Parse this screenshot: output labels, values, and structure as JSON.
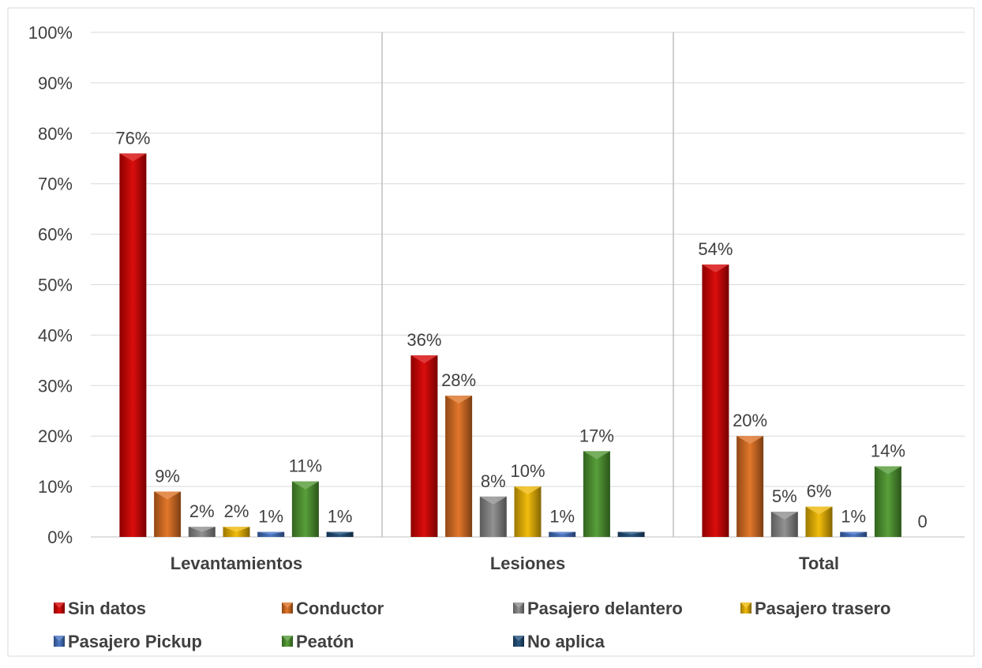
{
  "chart_data": {
    "type": "bar",
    "categories": [
      "Levantamientos",
      "Lesiones",
      "Total"
    ],
    "ylim": [
      0,
      100
    ],
    "yticks": [
      "0%",
      "10%",
      "20%",
      "30%",
      "40%",
      "50%",
      "60%",
      "70%",
      "80%",
      "90%",
      "100%"
    ],
    "grid": true,
    "legend_position": "bottom",
    "series": [
      {
        "name": "Sin datos",
        "color": "#d90000",
        "values": [
          76,
          36,
          54
        ],
        "labels": [
          "76%",
          "36%",
          "54%"
        ]
      },
      {
        "name": "Conductor",
        "color": "#e07020",
        "values": [
          9,
          28,
          20
        ],
        "labels": [
          "9%",
          "28%",
          "20%"
        ]
      },
      {
        "name": "Pasajero delantero",
        "color": "#8c8c8c",
        "values": [
          2,
          8,
          5
        ],
        "labels": [
          "2%",
          "8%",
          "5%"
        ]
      },
      {
        "name": "Pasajero trasero",
        "color": "#f0b800",
        "values": [
          2,
          10,
          6
        ],
        "labels": [
          "2%",
          "10%",
          "6%"
        ]
      },
      {
        "name": "Pasajero Pickup",
        "color": "#4472c4",
        "values": [
          1,
          1,
          1
        ],
        "labels": [
          "1%",
          "1%",
          "1%"
        ]
      },
      {
        "name": "Peatón",
        "color": "#4f9a30",
        "values": [
          11,
          17,
          14
        ],
        "labels": [
          "11%",
          "17%",
          "14%"
        ]
      },
      {
        "name": "No aplica",
        "color": "#1f4e79",
        "values": [
          1,
          1,
          0
        ],
        "labels": [
          "1%",
          "",
          "0"
        ]
      }
    ]
  }
}
